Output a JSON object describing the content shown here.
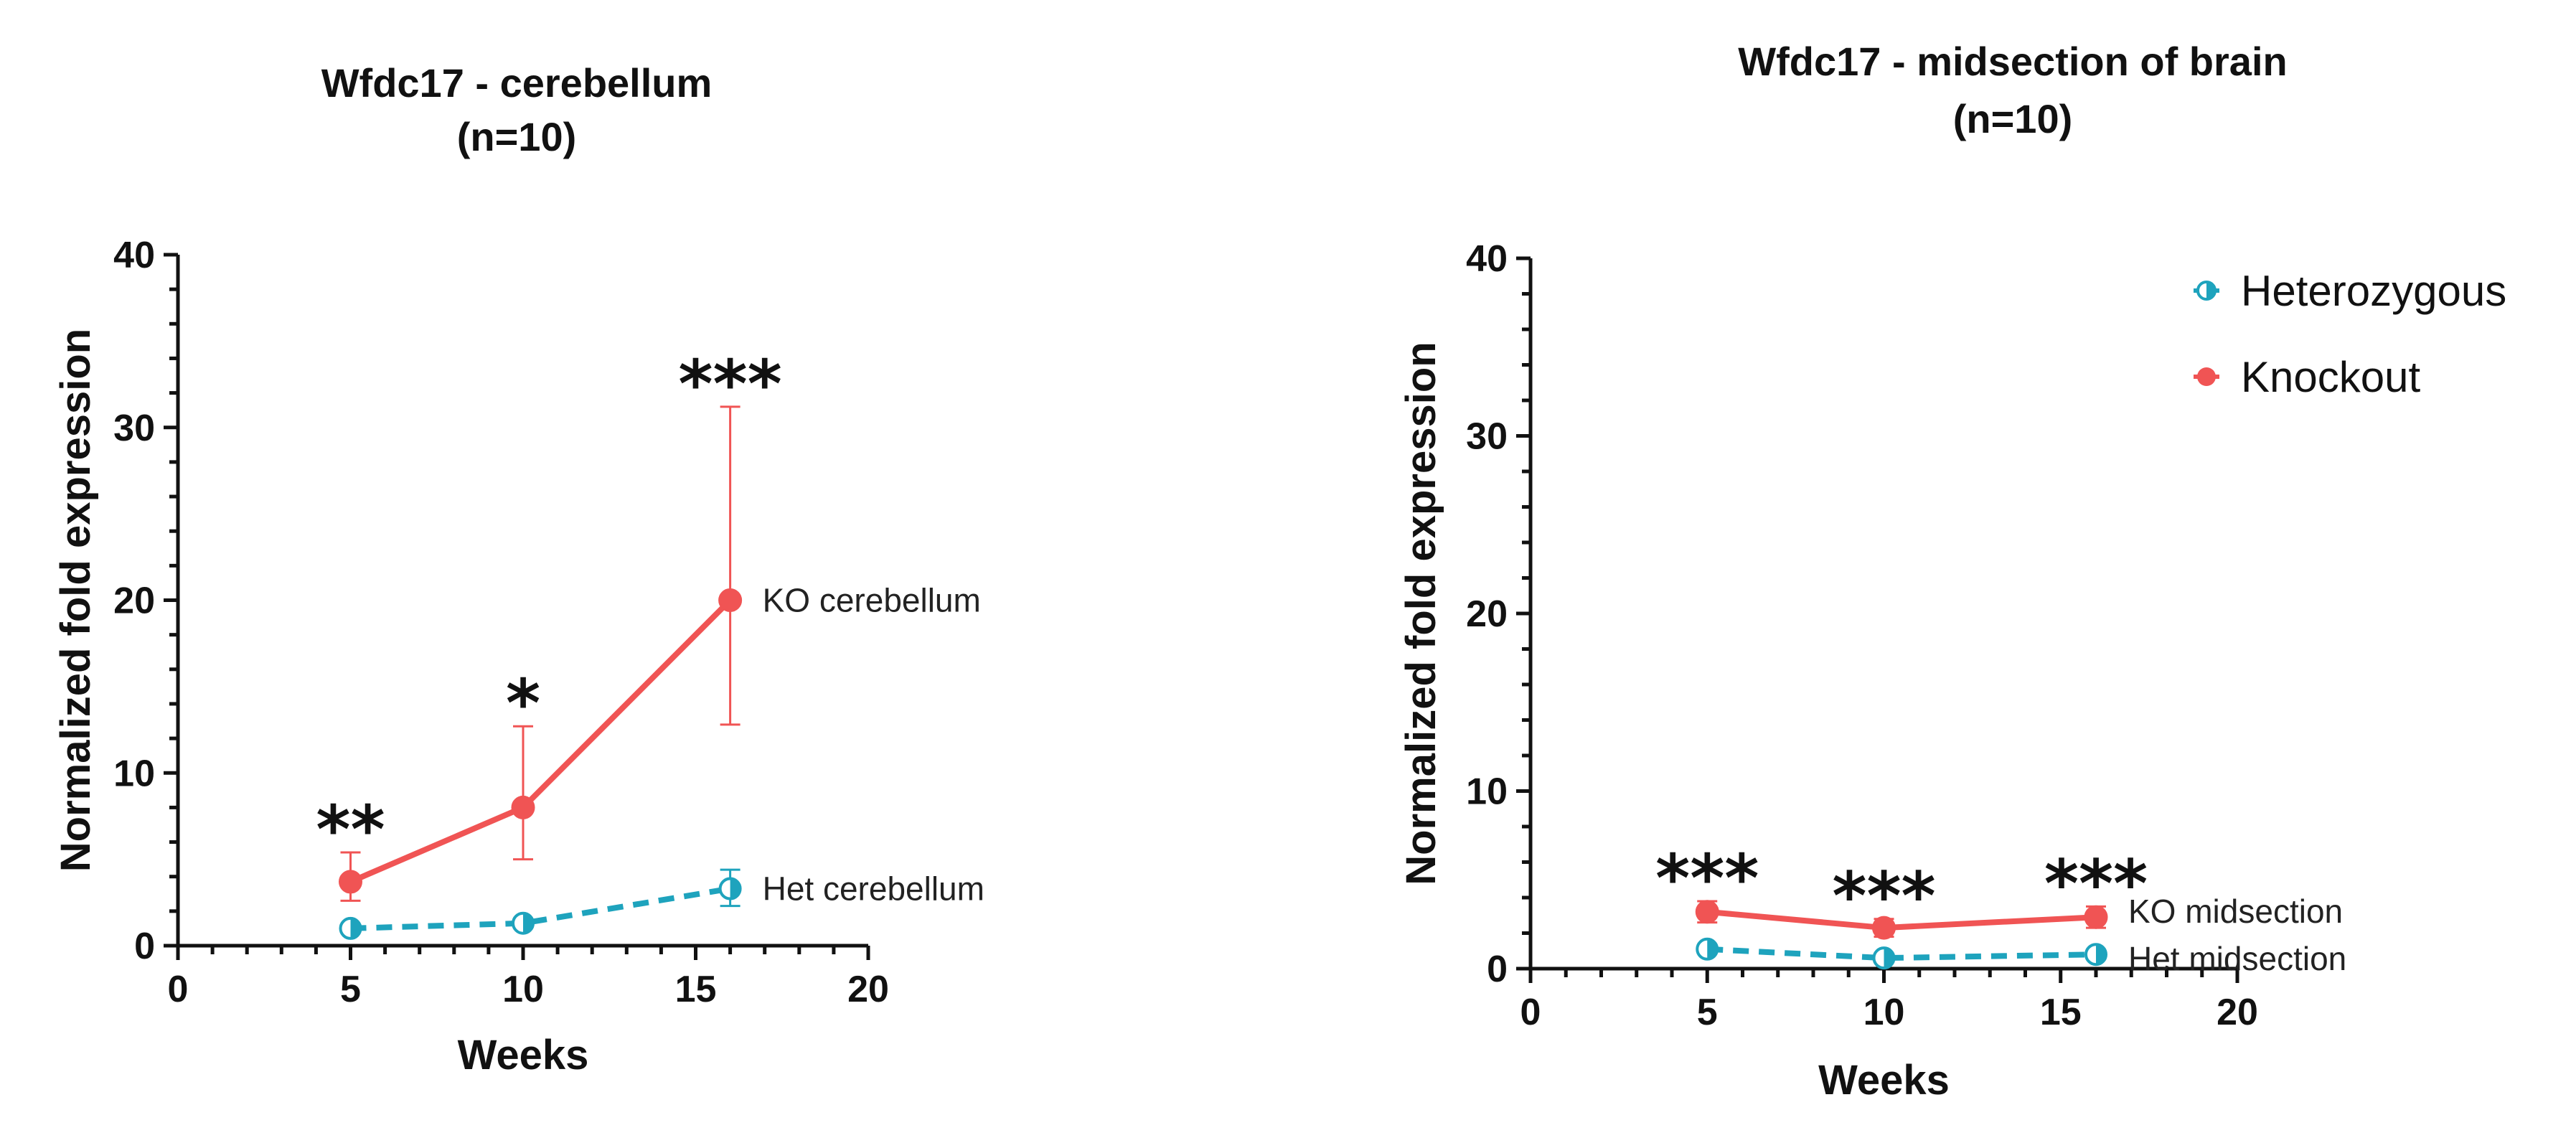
{
  "chart_data": [
    {
      "type": "line",
      "title": "Wfdc17 - cerebellum",
      "subtitle": "(n=10)",
      "xlabel": "Weeks",
      "ylabel": "Normalized fold expression",
      "xlim": [
        0,
        20
      ],
      "ylim": [
        0,
        40
      ],
      "xticks": [
        "0",
        "5",
        "10",
        "15",
        "20"
      ],
      "yticks": [
        "0",
        "10",
        "20",
        "30",
        "40"
      ],
      "series": [
        {
          "name": "Knockout",
          "label": "KO cerebellum",
          "color": "#f05454",
          "dashed": false,
          "x": [
            5,
            10,
            16
          ],
          "y": [
            3.7,
            8.0,
            20.0
          ],
          "err_low": [
            2.6,
            5.0,
            12.8
          ],
          "err_high": [
            5.4,
            12.7,
            31.2
          ]
        },
        {
          "name": "Heterozygous",
          "label": "Het cerebellum",
          "color": "#1ea3bd",
          "dashed": true,
          "x": [
            5,
            10,
            16
          ],
          "y": [
            1.0,
            1.3,
            3.3
          ],
          "err_low": [
            0.9,
            1.1,
            2.3
          ],
          "err_high": [
            1.1,
            1.5,
            4.4
          ]
        }
      ],
      "significance": [
        {
          "x": 5,
          "text": "**"
        },
        {
          "x": 10,
          "text": "*"
        },
        {
          "x": 16,
          "text": "***"
        }
      ]
    },
    {
      "type": "line",
      "title": "Wfdc17 - midsection of brain",
      "subtitle": "(n=10)",
      "xlabel": "Weeks",
      "ylabel": "Normalized fold expression",
      "xlim": [
        0,
        20
      ],
      "ylim": [
        0,
        40
      ],
      "xticks": [
        "0",
        "5",
        "10",
        "15",
        "20"
      ],
      "yticks": [
        "0",
        "10",
        "20",
        "30",
        "40"
      ],
      "series": [
        {
          "name": "Knockout",
          "label": "KO midsection",
          "color": "#f05454",
          "dashed": false,
          "x": [
            5,
            10,
            16
          ],
          "y": [
            3.2,
            2.3,
            2.9
          ],
          "err_low": [
            2.6,
            1.8,
            2.3
          ],
          "err_high": [
            3.8,
            2.8,
            3.5
          ]
        },
        {
          "name": "Heterozygous",
          "label": "Het midsection",
          "color": "#1ea3bd",
          "dashed": true,
          "x": [
            5,
            10,
            16
          ],
          "y": [
            1.1,
            0.6,
            0.8
          ],
          "err_low": [
            1.0,
            0.5,
            0.7
          ],
          "err_high": [
            1.2,
            0.7,
            0.9
          ]
        }
      ],
      "significance": [
        {
          "x": 5,
          "text": "***"
        },
        {
          "x": 10,
          "text": "***"
        },
        {
          "x": 16,
          "text": "***"
        }
      ],
      "legend": {
        "position": "top-right",
        "entries": [
          {
            "name": "Heterozygous",
            "color": "#1ea3bd"
          },
          {
            "name": "Knockout",
            "color": "#f05454"
          }
        ]
      }
    }
  ]
}
